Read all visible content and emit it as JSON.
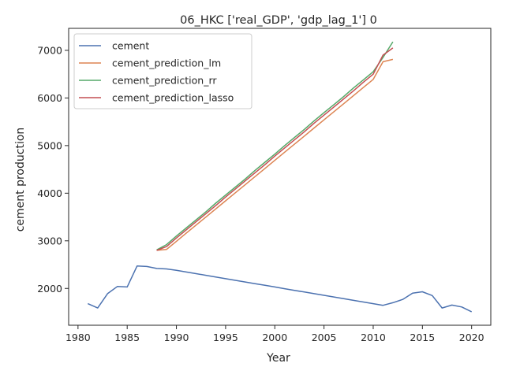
{
  "chart_data": {
    "type": "line",
    "title": "06_HKC ['real_GDP', 'gdp_lag_1'] 0",
    "xlabel": "Year",
    "ylabel": "cement production",
    "xlim": [
      1979.05,
      2021.95
    ],
    "ylim": [
      1227,
      7462
    ],
    "xticks": [
      1980,
      1985,
      1990,
      1995,
      2000,
      2005,
      2010,
      2015,
      2020
    ],
    "yticks": [
      2000,
      3000,
      4000,
      5000,
      6000,
      7000
    ],
    "grid": false,
    "legend_position": "top-left",
    "series": [
      {
        "name": "cement",
        "color": "#4c72b0",
        "x": [
          1981,
          1982,
          1983,
          1984,
          1985,
          1986,
          1987,
          1988,
          1989,
          1990,
          1991,
          1992,
          1993,
          1994,
          1995,
          1996,
          1997,
          1998,
          1999,
          2000,
          2001,
          2002,
          2003,
          2004,
          2005,
          2006,
          2007,
          2008,
          2009,
          2010,
          2011,
          2012,
          2013,
          2014,
          2015,
          2016,
          2017,
          2018,
          2019,
          2020
        ],
        "y": [
          1680,
          1590,
          1890,
          2040,
          2030,
          2470,
          2460,
          2420,
          2410,
          2380,
          2345,
          2310,
          2275,
          2240,
          2205,
          2170,
          2135,
          2100,
          2065,
          2030,
          1995,
          1960,
          1925,
          1890,
          1855,
          1820,
          1785,
          1750,
          1715,
          1680,
          1645,
          1700,
          1770,
          1900,
          1930,
          1850,
          1590,
          1650,
          1610,
          1510
        ]
      },
      {
        "name": "cement_prediction_lm",
        "color": "#dd8452",
        "x": [
          1988,
          1989,
          1990,
          1991,
          1992,
          1993,
          1994,
          1995,
          1996,
          1997,
          1998,
          1999,
          2000,
          2001,
          2002,
          2003,
          2004,
          2005,
          2006,
          2007,
          2008,
          2009,
          2010,
          2011,
          2012
        ],
        "y": [
          2800,
          2820,
          2990,
          3160,
          3330,
          3500,
          3670,
          3840,
          4010,
          4180,
          4350,
          4520,
          4690,
          4860,
          5030,
          5200,
          5370,
          5540,
          5710,
          5880,
          6050,
          6220,
          6390,
          6760,
          6810
        ]
      },
      {
        "name": "cement_prediction_rr",
        "color": "#55a868",
        "x": [
          1988,
          1989,
          1990,
          1991,
          1992,
          1993,
          1994,
          1995,
          1996,
          1997,
          1998,
          1999,
          2000,
          2001,
          2002,
          2003,
          2004,
          2005,
          2006,
          2007,
          2008,
          2009,
          2010,
          2011,
          2012
        ],
        "y": [
          2810,
          2920,
          3100,
          3270,
          3440,
          3610,
          3790,
          3960,
          4130,
          4300,
          4480,
          4650,
          4820,
          5000,
          5170,
          5340,
          5520,
          5690,
          5860,
          6030,
          6210,
          6380,
          6550,
          6850,
          7180
        ]
      },
      {
        "name": "cement_prediction_lasso",
        "color": "#c44e52",
        "x": [
          1988,
          1989,
          1990,
          1991,
          1992,
          1993,
          1994,
          1995,
          1996,
          1997,
          1998,
          1999,
          2000,
          2001,
          2002,
          2003,
          2004,
          2005,
          2006,
          2007,
          2008,
          2009,
          2010,
          2011,
          2012
        ],
        "y": [
          2800,
          2880,
          3060,
          3230,
          3400,
          3570,
          3740,
          3920,
          4090,
          4260,
          4430,
          4600,
          4780,
          4950,
          5120,
          5290,
          5470,
          5640,
          5810,
          5980,
          6150,
          6330,
          6500,
          6900,
          7050
        ]
      }
    ]
  }
}
